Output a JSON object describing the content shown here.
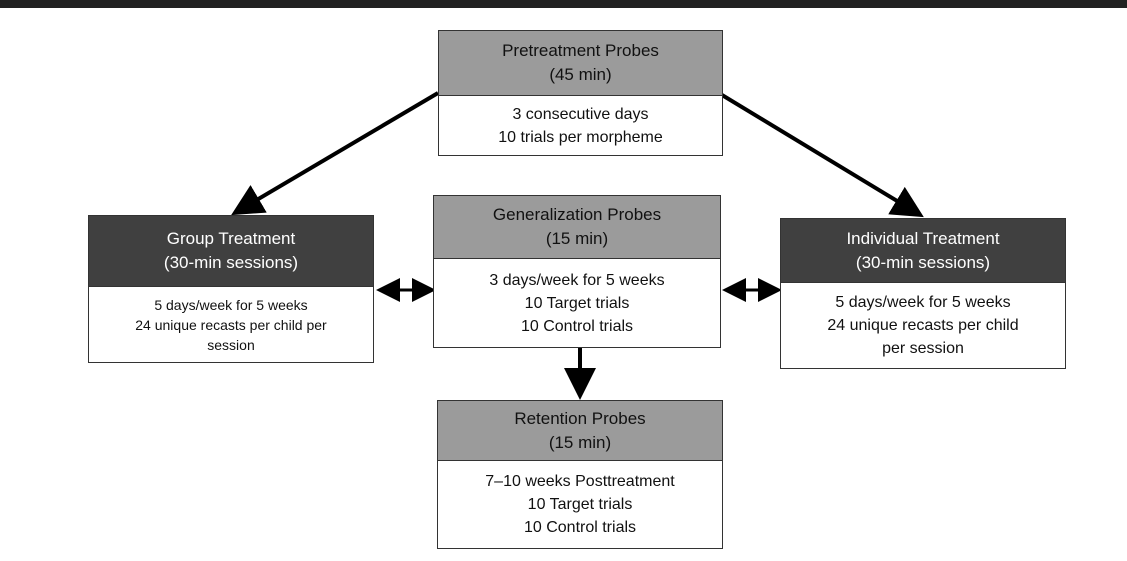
{
  "nodes": [
    {
      "title": "Pretreatment Probes",
      "subtitle": "(45 min)",
      "lines": [
        "3 consecutive days",
        "10 trials per morpheme"
      ]
    },
    {
      "title": "Group Treatment",
      "subtitle": "(30-min sessions)",
      "lines": [
        "5 days/week for 5 weeks",
        "24 unique recasts per child per",
        "session"
      ]
    },
    {
      "title": "Generalization Probes",
      "subtitle": "(15 min)",
      "lines": [
        "3 days/week for 5 weeks",
        "10 Target trials",
        "10 Control trials"
      ]
    },
    {
      "title": "Individual Treatment",
      "subtitle": "(30-min sessions)",
      "lines": [
        "5 days/week for 5 weeks",
        "24 unique recasts per child",
        "per session"
      ]
    },
    {
      "title": "Retention Probes",
      "subtitle": "(15 min)",
      "lines": [
        "7–10 weeks Posttreatment",
        "10 Target trials",
        "10 Control trials"
      ]
    }
  ]
}
